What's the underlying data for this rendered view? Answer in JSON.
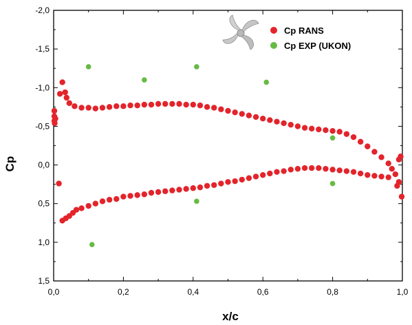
{
  "chart_data": {
    "type": "scatter",
    "xlabel": "x/c",
    "ylabel": "Cp",
    "xlim": [
      0,
      1
    ],
    "ylim": [
      -2,
      1.5
    ],
    "y_inverted": true,
    "x_ticks": [
      0,
      0.2,
      0.4,
      0.6,
      0.8,
      1.0
    ],
    "x_tick_labels": [
      "0,0",
      "0,2",
      "0,4",
      "0,6",
      "0,8",
      "1,0"
    ],
    "y_ticks": [
      -2,
      -1.5,
      -1,
      -0.5,
      0,
      0.5,
      1,
      1.5
    ],
    "y_tick_labels": [
      "-2,0",
      "-1,5",
      "-1,0",
      "-0,5",
      "0,0",
      "0,5",
      "1,0",
      "1,5"
    ],
    "grid": false,
    "legend_position": "top-right",
    "series": [
      {
        "name": "Cp RANS",
        "color": "#e3242b",
        "points": [
          [
            0.0,
            -0.7
          ],
          [
            0.001,
            -0.63
          ],
          [
            0.002,
            -0.57
          ],
          [
            0.003,
            -0.54
          ],
          [
            0.005,
            -0.6
          ],
          [
            0.015,
            0.24
          ],
          [
            0.018,
            -0.92
          ],
          [
            0.025,
            -1.07
          ],
          [
            0.033,
            -0.94
          ],
          [
            0.037,
            -0.87
          ],
          [
            0.045,
            -0.8
          ],
          [
            0.06,
            -0.76
          ],
          [
            0.08,
            -0.74
          ],
          [
            0.1,
            -0.74
          ],
          [
            0.12,
            -0.73
          ],
          [
            0.14,
            -0.74
          ],
          [
            0.16,
            -0.75
          ],
          [
            0.18,
            -0.76
          ],
          [
            0.2,
            -0.76
          ],
          [
            0.22,
            -0.77
          ],
          [
            0.24,
            -0.77
          ],
          [
            0.26,
            -0.78
          ],
          [
            0.28,
            -0.78
          ],
          [
            0.3,
            -0.79
          ],
          [
            0.32,
            -0.79
          ],
          [
            0.34,
            -0.79
          ],
          [
            0.36,
            -0.79
          ],
          [
            0.38,
            -0.78
          ],
          [
            0.4,
            -0.78
          ],
          [
            0.42,
            -0.77
          ],
          [
            0.44,
            -0.75
          ],
          [
            0.46,
            -0.74
          ],
          [
            0.48,
            -0.72
          ],
          [
            0.5,
            -0.7
          ],
          [
            0.52,
            -0.68
          ],
          [
            0.54,
            -0.66
          ],
          [
            0.56,
            -0.64
          ],
          [
            0.58,
            -0.62
          ],
          [
            0.6,
            -0.6
          ],
          [
            0.62,
            -0.58
          ],
          [
            0.64,
            -0.56
          ],
          [
            0.66,
            -0.54
          ],
          [
            0.68,
            -0.52
          ],
          [
            0.7,
            -0.5
          ],
          [
            0.72,
            -0.48
          ],
          [
            0.74,
            -0.47
          ],
          [
            0.76,
            -0.46
          ],
          [
            0.78,
            -0.45
          ],
          [
            0.8,
            -0.44
          ],
          [
            0.82,
            -0.43
          ],
          [
            0.84,
            -0.4
          ],
          [
            0.86,
            -0.36
          ],
          [
            0.88,
            -0.3
          ],
          [
            0.9,
            -0.24
          ],
          [
            0.92,
            -0.17
          ],
          [
            0.94,
            -0.1
          ],
          [
            0.96,
            -0.02
          ],
          [
            0.97,
            0.05
          ],
          [
            0.98,
            0.12
          ],
          [
            0.99,
            0.22
          ],
          [
            1.0,
            0.41
          ],
          [
            0.995,
            -0.11
          ],
          [
            0.99,
            -0.07
          ],
          [
            0.985,
            0.27
          ],
          [
            0.025,
            0.72
          ],
          [
            0.035,
            0.69
          ],
          [
            0.045,
            0.66
          ],
          [
            0.055,
            0.62
          ],
          [
            0.065,
            0.58
          ],
          [
            0.08,
            0.56
          ],
          [
            0.1,
            0.53
          ],
          [
            0.12,
            0.5
          ],
          [
            0.14,
            0.47
          ],
          [
            0.16,
            0.45
          ],
          [
            0.18,
            0.44
          ],
          [
            0.2,
            0.41
          ],
          [
            0.22,
            0.4
          ],
          [
            0.24,
            0.39
          ],
          [
            0.26,
            0.38
          ],
          [
            0.28,
            0.36
          ],
          [
            0.3,
            0.35
          ],
          [
            0.32,
            0.34
          ],
          [
            0.34,
            0.33
          ],
          [
            0.36,
            0.32
          ],
          [
            0.38,
            0.31
          ],
          [
            0.4,
            0.3
          ],
          [
            0.42,
            0.29
          ],
          [
            0.44,
            0.27
          ],
          [
            0.46,
            0.26
          ],
          [
            0.48,
            0.24
          ],
          [
            0.5,
            0.22
          ],
          [
            0.52,
            0.21
          ],
          [
            0.54,
            0.19
          ],
          [
            0.56,
            0.17
          ],
          [
            0.58,
            0.15
          ],
          [
            0.6,
            0.13
          ],
          [
            0.62,
            0.11
          ],
          [
            0.64,
            0.09
          ],
          [
            0.66,
            0.08
          ],
          [
            0.68,
            0.06
          ],
          [
            0.7,
            0.05
          ],
          [
            0.72,
            0.04
          ],
          [
            0.74,
            0.04
          ],
          [
            0.76,
            0.04
          ],
          [
            0.78,
            0.05
          ],
          [
            0.8,
            0.06
          ],
          [
            0.82,
            0.07
          ],
          [
            0.84,
            0.08
          ],
          [
            0.86,
            0.09
          ],
          [
            0.88,
            0.11
          ],
          [
            0.9,
            0.13
          ],
          [
            0.92,
            0.14
          ],
          [
            0.94,
            0.15
          ],
          [
            0.96,
            0.16
          ]
        ]
      },
      {
        "name": "Cp EXP (UKON)",
        "color": "#66bb44",
        "points": [
          [
            0.1,
            -1.27
          ],
          [
            0.11,
            1.03
          ],
          [
            0.26,
            -1.1
          ],
          [
            0.41,
            -1.27
          ],
          [
            0.41,
            0.47
          ],
          [
            0.61,
            -1.07
          ],
          [
            0.8,
            -0.35
          ],
          [
            0.8,
            0.24
          ]
        ]
      }
    ]
  }
}
